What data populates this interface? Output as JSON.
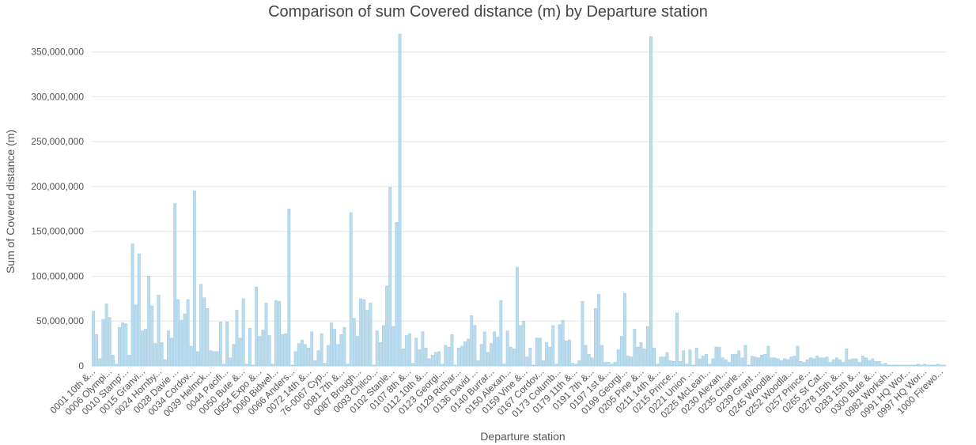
{
  "chart_data": {
    "type": "bar",
    "title": "Comparison of sum Covered distance (m) by Departure station",
    "xlabel": "Departure station",
    "ylabel": "Sum of Covered distance (m)",
    "ylim": [
      0,
      370000000
    ],
    "yticks": [
      0,
      50000000,
      100000000,
      150000000,
      200000000,
      250000000,
      300000000,
      350000000
    ],
    "ytick_labels": [
      "0",
      "50,000,000",
      "100,000,000",
      "150,000,000",
      "200,000,000",
      "250,000,000",
      "300,000,000",
      "350,000,000"
    ],
    "grid": "horizontal",
    "category_labels": [
      "0001 10th &...",
      "0006 Olympi...",
      "0010 Stamp'...",
      "0015 Granvi...",
      "0024 Hornby...",
      "0028 Davie ...",
      "0034 Cordov...",
      "0039 Helmck...",
      "0044 Pacifi...",
      "0050 Bute &...",
      "0054 Expo &...",
      "0060 Bidwel...",
      "0066 Anders...",
      "0072 14th &...",
      "76-0067 Cyp...",
      "0081 7th &...",
      "0087 Brough...",
      "0093 Chilco...",
      "0102 Stanle...",
      "0107 8th &...",
      "0112 10th &...",
      "0123 Georgi...",
      "0129 Richar...",
      "0136 David ...",
      "0140 Burrar...",
      "0150 Alexan...",
      "0159 Vine &...",
      "0167 Cordov...",
      "0173 Columb...",
      "0179 11th &...",
      "0191 7th &...",
      "0197 1st &...",
      "0199 Georgi...",
      "0205 Pine &...",
      "0211 14th &...",
      "0215 Prince...",
      "0221 Union ...",
      "0225 McLean...",
      "0230 Alexan...",
      "0235 Charle...",
      "0239 Grant ...",
      "0245 Woodla...",
      "0252 Woodla...",
      "0257 Prince...",
      "0265 St Cat...",
      "0278 15th &...",
      "0283 15th &...",
      "0300 Bute &...",
      "0982 Worksh...",
      "0991 HQ Wor...",
      "0997 HQ Wor...",
      "1000 Firewo..."
    ],
    "values": [
      61000000,
      35000000,
      8000000,
      52000000,
      69000000,
      54000000,
      12000000,
      2000000,
      43000000,
      48000000,
      47000000,
      12000000,
      136000000,
      68000000,
      125000000,
      39000000,
      41000000,
      100000000,
      67000000,
      25000000,
      79000000,
      26000000,
      7000000,
      39000000,
      31000000,
      181000000,
      74000000,
      51000000,
      58000000,
      74000000,
      22000000,
      195000000,
      16000000,
      91000000,
      76000000,
      64000000,
      17000000,
      16000000,
      16000000,
      49000000,
      2000000,
      49000000,
      9000000,
      24000000,
      62000000,
      31000000,
      75000000,
      2000000,
      42000000,
      1000000,
      88000000,
      33000000,
      40000000,
      70000000,
      34000000,
      2000000,
      73000000,
      72000000,
      35000000,
      36000000,
      175000000,
      1000000,
      16000000,
      25000000,
      29000000,
      24000000,
      20000000,
      38000000,
      6000000,
      17000000,
      36000000,
      3000000,
      23000000,
      48000000,
      41000000,
      24000000,
      35000000,
      43000000,
      2000000,
      171000000,
      53000000,
      33000000,
      75000000,
      74000000,
      62000000,
      70000000,
      1000000,
      39000000,
      26000000,
      45000000,
      89000000,
      199000000,
      44000000,
      160000000,
      370000000,
      19000000,
      34000000,
      36000000,
      3000000,
      31000000,
      18000000,
      38000000,
      20000000,
      8000000,
      12000000,
      15000000,
      16000000,
      2000000,
      23000000,
      21000000,
      35000000,
      1000000,
      20000000,
      22000000,
      27000000,
      30000000,
      56000000,
      45000000,
      6000000,
      24000000,
      38000000,
      15000000,
      25000000,
      38000000,
      32000000,
      73000000,
      2000000,
      39000000,
      21000000,
      19000000,
      110000000,
      45000000,
      50000000,
      10000000,
      20000000,
      1000000,
      31000000,
      31000000,
      6000000,
      26000000,
      21000000,
      45000000,
      2000000,
      46000000,
      51000000,
      28000000,
      29000000,
      3000000,
      2000000,
      6000000,
      72000000,
      23000000,
      13000000,
      9000000,
      64000000,
      80000000,
      23000000,
      4000000,
      4000000,
      2000000,
      4000000,
      18000000,
      33000000,
      81000000,
      11000000,
      10000000,
      41000000,
      21000000,
      26000000,
      19000000,
      44000000,
      367000000,
      20000000,
      2000000,
      10000000,
      10000000,
      15000000,
      6000000,
      5000000,
      59000000,
      5000000,
      17000000,
      2000000,
      18000000,
      1000000,
      20000000,
      8000000,
      11000000,
      13000000,
      2000000,
      8000000,
      21000000,
      21000000,
      9000000,
      7000000,
      4000000,
      13000000,
      13000000,
      17000000,
      9000000,
      23000000,
      1000000,
      11000000,
      10000000,
      9000000,
      12000000,
      13000000,
      22000000,
      9000000,
      9000000,
      8000000,
      6000000,
      8000000,
      7000000,
      10000000,
      11000000,
      22000000,
      5000000,
      4000000,
      7000000,
      9000000,
      8000000,
      11000000,
      9000000,
      9000000,
      10000000,
      4000000,
      7000000,
      9000000,
      7000000,
      4000000,
      19000000,
      7000000,
      8000000,
      8000000,
      4000000,
      11000000,
      9000000,
      6000000,
      8000000,
      5000000,
      5000000,
      2000000,
      3000000,
      1000000,
      1000000,
      1000000,
      1000000,
      1000000,
      1000000,
      1000000,
      1000000,
      1000000,
      2000000,
      1000000,
      2000000,
      1000000,
      1000000,
      1000000,
      2000000,
      1000000,
      1000000
    ]
  }
}
